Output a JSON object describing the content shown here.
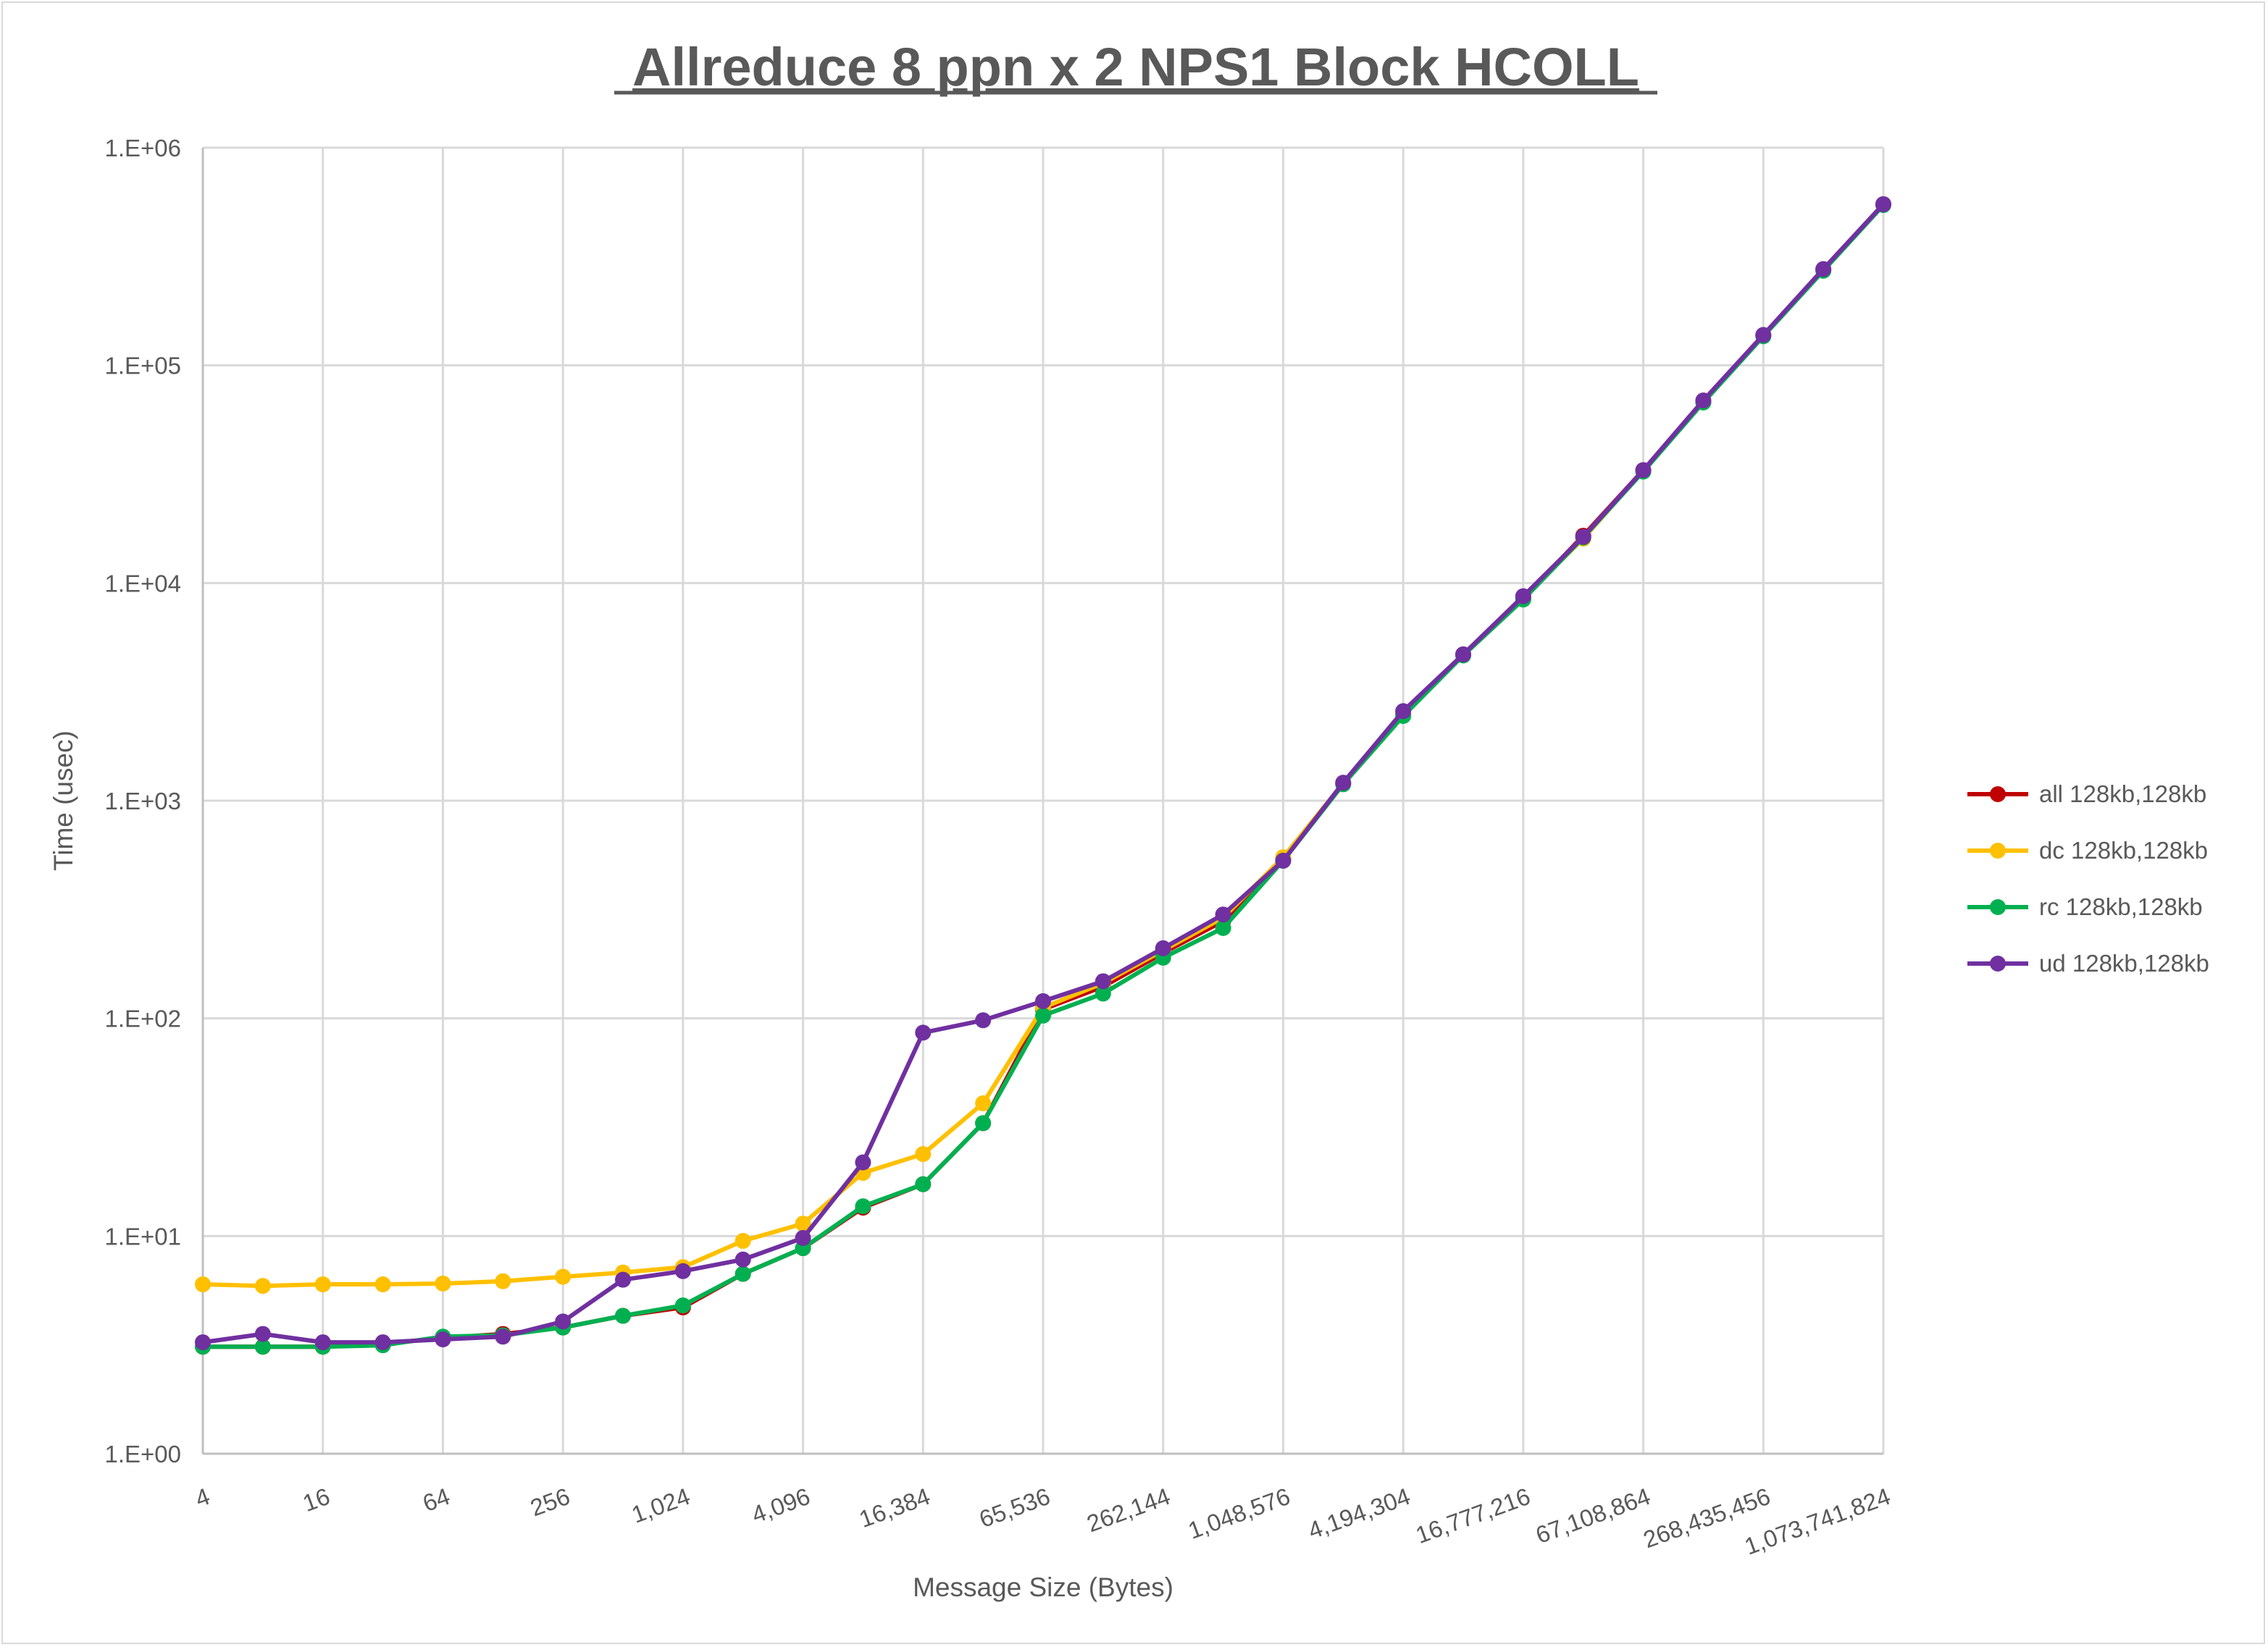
{
  "chart_data": {
    "type": "line",
    "title": "Allreduce 8 ppn x 2 NPS1 Block HCOLL",
    "xlabel": "Message Size (Bytes)",
    "ylabel": "Time (usec)",
    "x_scale": "log2",
    "y_scale": "log10",
    "ylim": [
      1,
      1000000
    ],
    "grid": true,
    "legend_position": "right",
    "x": [
      4,
      8,
      16,
      32,
      64,
      128,
      256,
      512,
      1024,
      2048,
      4096,
      8192,
      16384,
      32768,
      65536,
      131072,
      262144,
      524288,
      1048576,
      2097152,
      4194304,
      8388608,
      16777216,
      33554432,
      67108864,
      134217728,
      268435456,
      536870912,
      1073741824
    ],
    "x_tick_labels": [
      "4",
      "16",
      "64",
      "256",
      "1,024",
      "4,096",
      "16,384",
      "65,536",
      "262,144",
      "1,048,576",
      "4,194,304",
      "16,777,216",
      "67,108,864",
      "268,435,456",
      "1,073,741,824"
    ],
    "y_tick_labels": [
      "1.E+00",
      "1.E+01",
      "1.E+02",
      "1.E+03",
      "1.E+04",
      "1.E+05",
      "1.E+06"
    ],
    "series": [
      {
        "name": "all 128kb,128kb",
        "color": "#c00000",
        "values": [
          3.1,
          3.1,
          3.1,
          3.2,
          3.4,
          3.55,
          3.8,
          4.3,
          4.7,
          6.7,
          8.8,
          13.5,
          17.3,
          33,
          110,
          140,
          200,
          280,
          540,
          1200,
          2500,
          4700,
          8500,
          16500,
          33000,
          68000,
          137000,
          275000,
          550000
        ]
      },
      {
        "name": "dc 128kb,128kb",
        "color": "#ffc000",
        "values": [
          6.0,
          5.9,
          6.0,
          6.0,
          6.05,
          6.2,
          6.5,
          6.8,
          7.2,
          9.5,
          11.4,
          19.5,
          23.8,
          40.7,
          112,
          145,
          205,
          290,
          550,
          1200,
          2550,
          4650,
          8600,
          16000,
          32800,
          68000,
          137000,
          276000,
          548000
        ]
      },
      {
        "name": "rc 128kb,128kb",
        "color": "#00b050",
        "values": [
          3.1,
          3.1,
          3.1,
          3.15,
          3.45,
          3.5,
          3.8,
          4.3,
          4.8,
          6.7,
          8.8,
          13.7,
          17.3,
          33,
          103,
          130,
          190,
          260,
          530,
          1190,
          2450,
          4650,
          8400,
          16200,
          32500,
          67500,
          136000,
          272000,
          545000
        ]
      },
      {
        "name": "ud 128kb,128kb",
        "color": "#7030a0",
        "values": [
          3.25,
          3.55,
          3.25,
          3.25,
          3.35,
          3.45,
          4.05,
          6.3,
          6.9,
          7.8,
          9.8,
          21.8,
          86,
          98,
          120,
          148,
          210,
          300,
          530,
          1210,
          2580,
          4700,
          8700,
          16300,
          33000,
          69000,
          138000,
          277000,
          550000
        ]
      }
    ]
  }
}
